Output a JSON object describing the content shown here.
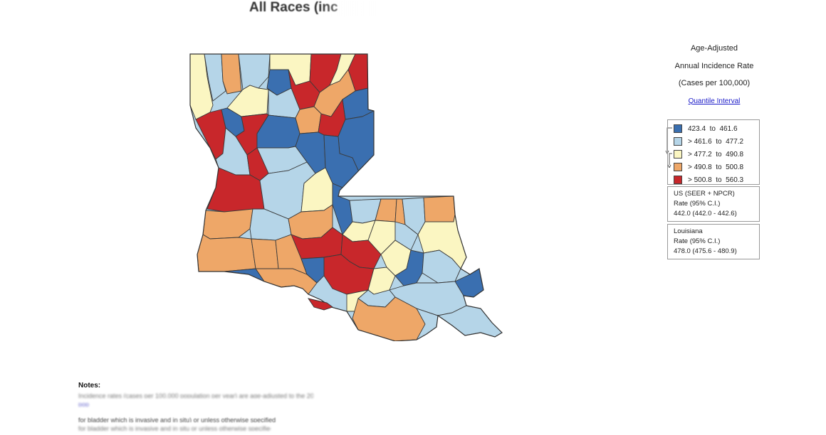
{
  "title": "All Races (inc",
  "legend": {
    "heading_lines": [
      "Age-Adjusted",
      "Annual Incidence Rate",
      "(Cases per 100,000)"
    ],
    "interval_link": "Quantile Interval",
    "bins": [
      {
        "label": "423.4  to  461.6",
        "color": "#3a6fb0"
      },
      {
        "label": "> 461.6  to  477.2",
        "color": "#b5d5e8"
      },
      {
        "label": "> 477.2  to  490.8",
        "color": "#fbf6c2"
      },
      {
        "label": "> 490.8  to  500.8",
        "color": "#eea768"
      },
      {
        "label": "> 500.8  to  560.3",
        "color": "#c8272b"
      }
    ]
  },
  "us_rate": {
    "lines": [
      "US (SEER + NPCR)",
      "Rate  (95% C.I.)",
      "442.0 (442.0 - 442.6)"
    ]
  },
  "la_rate": {
    "lines": [
      "Louisiana",
      "Rate  (95% C.I.)",
      "478.0 (475.6 - 480.9)"
    ]
  },
  "notes": {
    "title": "Notes:",
    "lines": [
      "Incidence rates (cases per 100,000 population per year) are age-adjusted to the 2000 US standard population",
      "pop",
      "for bladder which is invasive and in situ) or unless otherwise specified",
      "for bladder which is invasive and in situ or unless otherwise specified"
    ]
  }
}
